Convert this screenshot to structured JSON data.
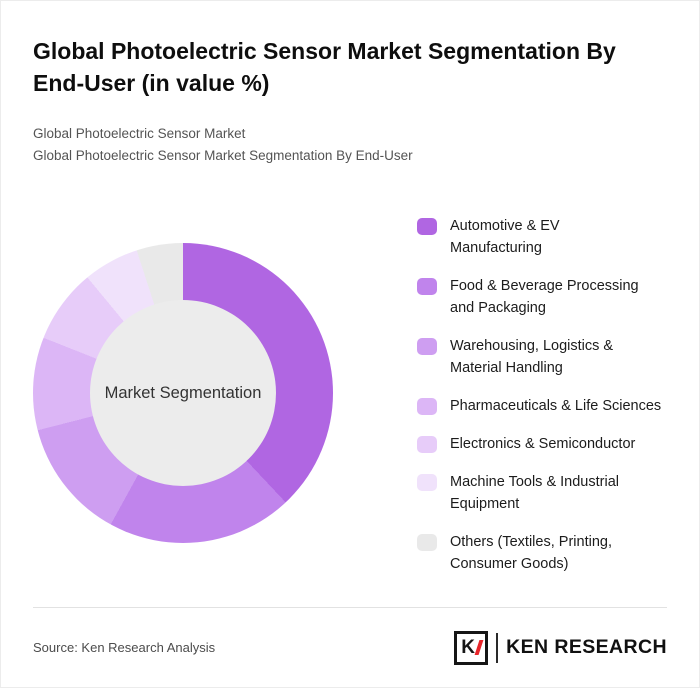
{
  "page": {
    "title": "Global Photoelectric Sensor Market Segmentation By End-User (in value %)",
    "subtitle1": "Global Photoelectric Sensor Market",
    "subtitle2": "Global Photoelectric Sensor Market Segmentation By End-User"
  },
  "chart_data": {
    "type": "pie",
    "donut": true,
    "title": "Global Photoelectric Sensor Market Segmentation By End-User (in value %)",
    "center_label": "Market Segmentation",
    "legend_position": "right",
    "categories": [
      "Automotive & EV Manufacturing",
      "Food & Beverage Processing and Packaging",
      "Warehousing, Logistics & Material Handling",
      "Pharmaceuticals & Life Sciences",
      "Electronics & Semiconductor",
      "Machine Tools & Industrial Equipment",
      "Others (Textiles, Printing, Consumer Goods)"
    ],
    "values": [
      38,
      20,
      13,
      10,
      8,
      6,
      5
    ],
    "colors": [
      "#b066e2",
      "#c084ec",
      "#ce9ef1",
      "#dcb6f6",
      "#e7ccf9",
      "#f0e2fb",
      "#e9e9e9"
    ],
    "center_color": "#ececec"
  },
  "legend": {
    "items": [
      {
        "label": "Automotive & EV\nManufacturing"
      },
      {
        "label": "Food & Beverage Processing\nand Packaging"
      },
      {
        "label": "Warehousing, Logistics &\nMaterial Handling"
      },
      {
        "label": "Pharmaceuticals & Life Sciences"
      },
      {
        "label": "Electronics & Semiconductor"
      },
      {
        "label": "Machine Tools & Industrial\nEquipment"
      },
      {
        "label": "Others (Textiles, Printing,\nConsumer Goods)"
      }
    ]
  },
  "footer": {
    "source": "Source: Ken Research Analysis",
    "logo_letter": "K",
    "logo_text": "KEN RESEARCH",
    "logo_accent_color": "#e8252a"
  }
}
